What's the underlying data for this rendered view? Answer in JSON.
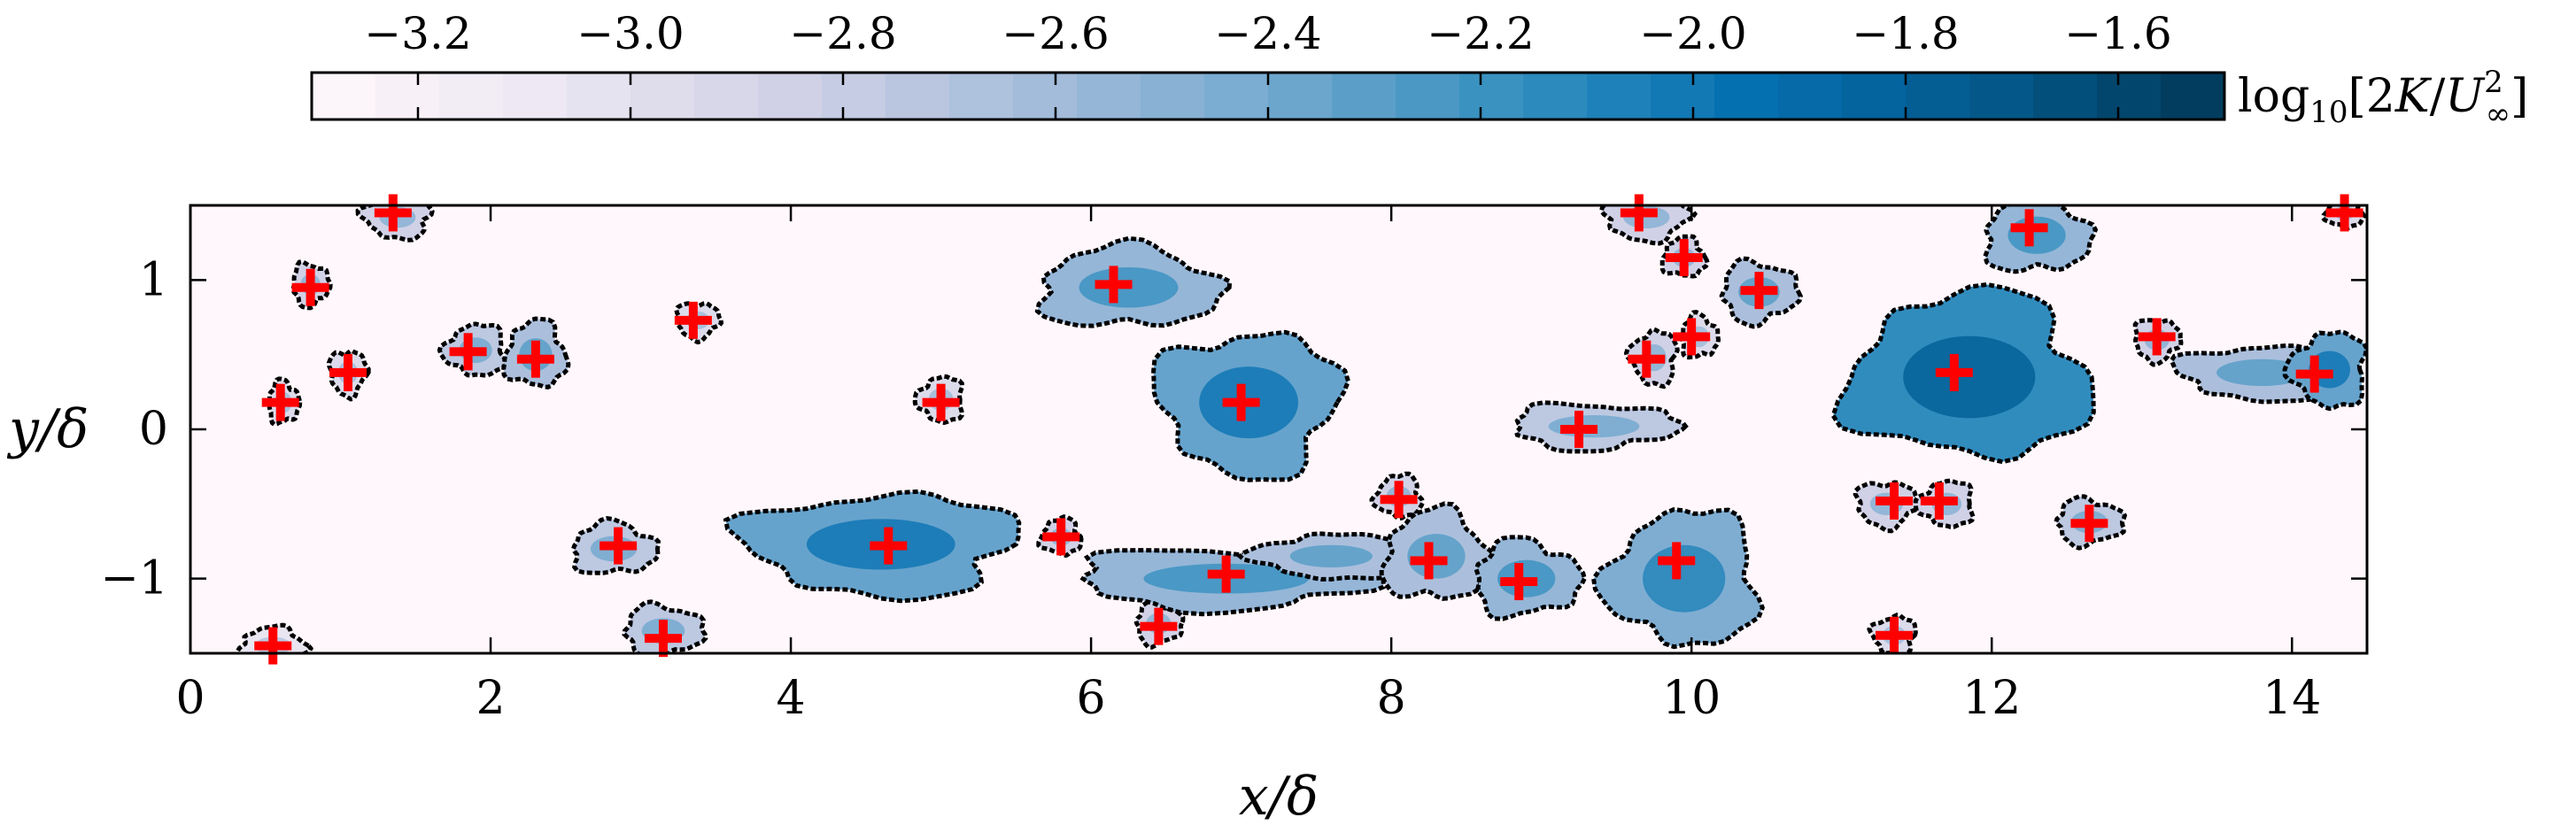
{
  "chart_data": {
    "type": "heatmap",
    "xlabel": "x/δ",
    "ylabel": "y/δ",
    "xlim": [
      0,
      14.5
    ],
    "ylim": [
      -1.5,
      1.5
    ],
    "x_ticks": [
      "0",
      "2",
      "4",
      "6",
      "8",
      "10",
      "12",
      "14"
    ],
    "y_ticks": [
      "−1",
      "0",
      "1"
    ],
    "colorbar": {
      "label": "log10[2K/U∞²]",
      "label_parts": {
        "prefix": "log",
        "prefix_sub": "10",
        "open": "[2",
        "K": "K",
        "slash": "/",
        "U": "U",
        "U_sup": "2",
        "U_sub": "∞",
        "close": "]"
      },
      "range": [
        -3.3,
        -1.5
      ],
      "ticks": [
        "−3.2",
        "−3.0",
        "−2.8",
        "−2.6",
        "−2.4",
        "−2.2",
        "−2.0",
        "−1.8",
        "−1.6"
      ],
      "tick_values": [
        -3.2,
        -3.0,
        -2.8,
        -2.6,
        -2.4,
        -2.2,
        -2.0,
        -1.8,
        -1.6
      ],
      "colors": [
        "#fff7fb",
        "#ece7f2",
        "#d0d1e6",
        "#a6bddb",
        "#74a9cf",
        "#3690c0",
        "#0570b0",
        "#045a8d",
        "#023858"
      ]
    },
    "marker_color": "#ff0000",
    "contour_color": "#000000",
    "markers": [
      {
        "x": 0.55,
        "y": -1.45
      },
      {
        "x": 0.6,
        "y": 0.18
      },
      {
        "x": 0.8,
        "y": 0.95
      },
      {
        "x": 1.05,
        "y": 0.38
      },
      {
        "x": 1.35,
        "y": 1.45
      },
      {
        "x": 1.85,
        "y": 0.52
      },
      {
        "x": 2.3,
        "y": 0.47
      },
      {
        "x": 2.85,
        "y": -0.78
      },
      {
        "x": 3.15,
        "y": -1.4
      },
      {
        "x": 3.35,
        "y": 0.73
      },
      {
        "x": 4.65,
        "y": -0.78
      },
      {
        "x": 5.0,
        "y": 0.18
      },
      {
        "x": 5.8,
        "y": -0.72
      },
      {
        "x": 6.15,
        "y": 0.97
      },
      {
        "x": 6.45,
        "y": -1.32
      },
      {
        "x": 6.9,
        "y": -0.97
      },
      {
        "x": 7.0,
        "y": 0.18
      },
      {
        "x": 8.05,
        "y": -0.47
      },
      {
        "x": 8.25,
        "y": -0.88
      },
      {
        "x": 8.85,
        "y": -1.02
      },
      {
        "x": 9.25,
        "y": 0.0
      },
      {
        "x": 9.65,
        "y": 1.45
      },
      {
        "x": 9.7,
        "y": 0.47
      },
      {
        "x": 9.9,
        "y": -0.88
      },
      {
        "x": 9.95,
        "y": 1.15
      },
      {
        "x": 10.0,
        "y": 0.62
      },
      {
        "x": 10.45,
        "y": 0.93
      },
      {
        "x": 11.35,
        "y": -0.48
      },
      {
        "x": 11.35,
        "y": -1.38
      },
      {
        "x": 11.65,
        "y": -0.48
      },
      {
        "x": 11.75,
        "y": 0.38
      },
      {
        "x": 12.25,
        "y": 1.35
      },
      {
        "x": 12.65,
        "y": -0.63
      },
      {
        "x": 13.1,
        "y": 0.62
      },
      {
        "x": 14.15,
        "y": 0.37
      },
      {
        "x": 14.35,
        "y": 1.45
      }
    ],
    "structures": [
      {
        "x": 0.55,
        "y": -1.45,
        "rx": 0.22,
        "ry": 0.12,
        "level": -2.7
      },
      {
        "x": 0.62,
        "y": 0.18,
        "rx": 0.1,
        "ry": 0.14,
        "level": -2.6
      },
      {
        "x": 0.8,
        "y": 0.97,
        "rx": 0.12,
        "ry": 0.14,
        "level": -2.5
      },
      {
        "x": 1.05,
        "y": 0.38,
        "rx": 0.12,
        "ry": 0.15,
        "level": -2.6
      },
      {
        "x": 1.38,
        "y": 1.42,
        "rx": 0.22,
        "ry": 0.14,
        "level": -2.5
      },
      {
        "x": 1.9,
        "y": 0.53,
        "rx": 0.2,
        "ry": 0.17,
        "level": -2.4
      },
      {
        "x": 2.3,
        "y": 0.5,
        "rx": 0.2,
        "ry": 0.22,
        "level": -2.3
      },
      {
        "x": 2.82,
        "y": -0.8,
        "rx": 0.28,
        "ry": 0.17,
        "level": -2.4
      },
      {
        "x": 3.15,
        "y": -1.35,
        "rx": 0.26,
        "ry": 0.17,
        "level": -2.4
      },
      {
        "x": 3.38,
        "y": 0.73,
        "rx": 0.14,
        "ry": 0.12,
        "level": -2.6
      },
      {
        "x": 4.6,
        "y": -0.77,
        "rx": 0.9,
        "ry": 0.34,
        "level": -2.0
      },
      {
        "x": 5.0,
        "y": 0.2,
        "rx": 0.15,
        "ry": 0.15,
        "level": -2.6
      },
      {
        "x": 5.8,
        "y": -0.72,
        "rx": 0.13,
        "ry": 0.12,
        "level": -2.5
      },
      {
        "x": 6.25,
        "y": 0.95,
        "rx": 0.6,
        "ry": 0.27,
        "level": -2.2
      },
      {
        "x": 6.45,
        "y": -1.3,
        "rx": 0.15,
        "ry": 0.14,
        "level": -2.5
      },
      {
        "x": 6.9,
        "y": -1.0,
        "rx": 1.0,
        "ry": 0.2,
        "level": -2.2
      },
      {
        "x": 7.05,
        "y": 0.18,
        "rx": 0.6,
        "ry": 0.48,
        "level": -2.0
      },
      {
        "x": 7.6,
        "y": -0.85,
        "rx": 0.5,
        "ry": 0.15,
        "level": -2.3
      },
      {
        "x": 8.05,
        "y": -0.45,
        "rx": 0.15,
        "ry": 0.14,
        "level": -2.5
      },
      {
        "x": 8.3,
        "y": -0.85,
        "rx": 0.35,
        "ry": 0.3,
        "level": -2.3
      },
      {
        "x": 8.9,
        "y": -1.0,
        "rx": 0.35,
        "ry": 0.25,
        "level": -2.2
      },
      {
        "x": 9.35,
        "y": 0.02,
        "rx": 0.55,
        "ry": 0.15,
        "level": -2.4
      },
      {
        "x": 9.7,
        "y": 1.42,
        "rx": 0.28,
        "ry": 0.15,
        "level": -2.5
      },
      {
        "x": 9.75,
        "y": 0.48,
        "rx": 0.15,
        "ry": 0.18,
        "level": -2.5
      },
      {
        "x": 9.95,
        "y": -1.0,
        "rx": 0.5,
        "ry": 0.45,
        "level": -2.1
      },
      {
        "x": 9.95,
        "y": 1.15,
        "rx": 0.14,
        "ry": 0.13,
        "level": -2.5
      },
      {
        "x": 10.05,
        "y": 0.62,
        "rx": 0.12,
        "ry": 0.14,
        "level": -2.6
      },
      {
        "x": 10.45,
        "y": 0.92,
        "rx": 0.25,
        "ry": 0.2,
        "level": -2.3
      },
      {
        "x": 11.3,
        "y": -0.5,
        "rx": 0.2,
        "ry": 0.15,
        "level": -2.5
      },
      {
        "x": 11.35,
        "y": -1.38,
        "rx": 0.14,
        "ry": 0.13,
        "level": -2.6
      },
      {
        "x": 11.7,
        "y": -0.5,
        "rx": 0.18,
        "ry": 0.15,
        "level": -2.5
      },
      {
        "x": 11.85,
        "y": 0.35,
        "rx": 0.8,
        "ry": 0.55,
        "level": -1.8
      },
      {
        "x": 12.3,
        "y": 1.3,
        "rx": 0.35,
        "ry": 0.25,
        "level": -2.2
      },
      {
        "x": 12.65,
        "y": -0.62,
        "rx": 0.22,
        "ry": 0.15,
        "level": -2.4
      },
      {
        "x": 13.1,
        "y": 0.6,
        "rx": 0.15,
        "ry": 0.14,
        "level": -2.5
      },
      {
        "x": 13.8,
        "y": 0.38,
        "rx": 0.55,
        "ry": 0.18,
        "level": -2.3
      },
      {
        "x": 14.25,
        "y": 0.4,
        "rx": 0.25,
        "ry": 0.25,
        "level": -2.0
      },
      {
        "x": 14.35,
        "y": 1.45,
        "rx": 0.12,
        "ry": 0.1,
        "level": -2.6
      }
    ]
  }
}
